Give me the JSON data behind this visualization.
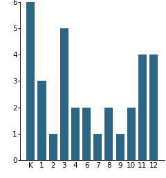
{
  "categories": [
    "K",
    "1",
    "2",
    "3",
    "4",
    "6",
    "7",
    "8",
    "9",
    "10",
    "11",
    "12"
  ],
  "values": [
    6,
    3,
    1,
    5,
    2,
    2,
    1,
    2,
    1,
    2,
    4,
    4
  ],
  "bar_color": "#2d6584",
  "ylim": [
    0,
    6
  ],
  "yticks": [
    0,
    1,
    2,
    3,
    4,
    5,
    6
  ],
  "background_color": "#ffffff",
  "tick_fontsize": 7.5,
  "bar_width": 0.75
}
